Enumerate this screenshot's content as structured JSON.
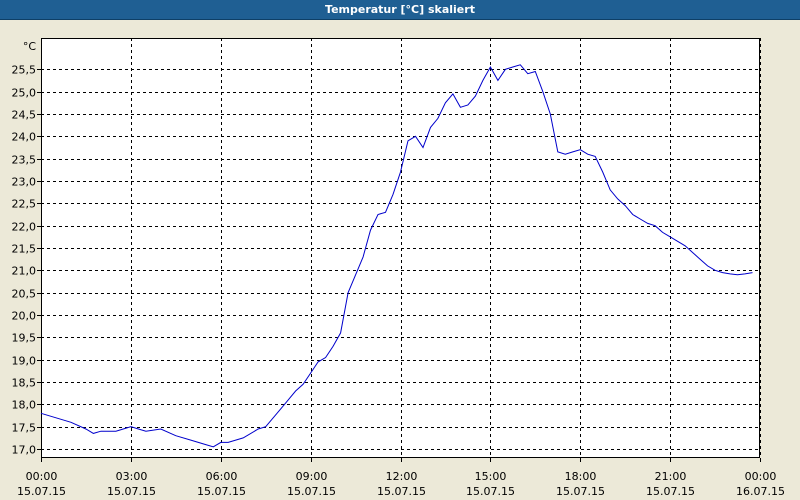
{
  "window": {
    "title": "Temperatur [°C] skaliert"
  },
  "colors": {
    "titlebar": "#1f5f93",
    "panel": "#ece9d8",
    "plot_bg": "#ffffff",
    "grid": "#000000",
    "line": "#0000cc"
  },
  "chart_data": {
    "type": "line",
    "title": "Temperatur [°C] skaliert",
    "ylabel": "°C",
    "xlabel": "",
    "ylim": [
      16.8,
      26.2
    ],
    "xlim": [
      0,
      24
    ],
    "grid": true,
    "y_ticks": [
      "17,0",
      "17,5",
      "18,0",
      "18,5",
      "19,0",
      "19,5",
      "20,0",
      "20,5",
      "21,0",
      "21,5",
      "22,0",
      "22,5",
      "23,0",
      "23,5",
      "24,0",
      "24,5",
      "25,0",
      "25,5"
    ],
    "y_tick_values": [
      17.0,
      17.5,
      18.0,
      18.5,
      19.0,
      19.5,
      20.0,
      20.5,
      21.0,
      21.5,
      22.0,
      22.5,
      23.0,
      23.5,
      24.0,
      24.5,
      25.0,
      25.5
    ],
    "x_ticks": [
      {
        "time": "00:00",
        "date": "15.07.15"
      },
      {
        "time": "03:00",
        "date": "15.07.15"
      },
      {
        "time": "06:00",
        "date": "15.07.15"
      },
      {
        "time": "09:00",
        "date": "15.07.15"
      },
      {
        "time": "12:00",
        "date": "15.07.15"
      },
      {
        "time": "15:00",
        "date": "15.07.15"
      },
      {
        "time": "18:00",
        "date": "15.07.15"
      },
      {
        "time": "21:00",
        "date": "15.07.15"
      },
      {
        "time": "00:00",
        "date": "16.07.15"
      }
    ],
    "x_tick_hours": [
      0,
      3,
      6,
      9,
      12,
      15,
      18,
      21,
      24
    ],
    "series": [
      {
        "x": [
          0.0,
          0.5,
          1.0,
          1.5,
          1.75,
          2.0,
          2.5,
          3.0,
          3.25,
          3.5,
          4.0,
          4.5,
          5.0,
          5.5,
          5.75,
          6.0,
          6.25,
          6.75,
          7.25,
          7.5,
          7.75,
          8.0,
          8.25,
          8.5,
          8.75,
          9.0,
          9.25,
          9.5,
          9.75,
          10.0,
          10.25,
          10.5,
          10.75,
          11.0,
          11.25,
          11.5,
          11.75,
          12.0,
          12.25,
          12.5,
          12.75,
          13.0,
          13.25,
          13.5,
          13.75,
          14.0,
          14.25,
          14.5,
          14.75,
          15.0,
          15.25,
          15.5,
          15.75,
          16.0,
          16.25,
          16.5,
          16.75,
          17.0,
          17.25,
          17.5,
          17.75,
          18.0,
          18.25,
          18.5,
          18.75,
          19.0,
          19.25,
          19.5,
          19.75,
          20.0,
          20.25,
          20.5,
          20.75,
          21.0,
          21.25,
          21.5,
          21.75,
          22.0,
          22.25,
          22.5,
          22.75,
          23.0,
          23.25,
          23.5,
          23.75
        ],
        "y": [
          17.8,
          17.7,
          17.6,
          17.45,
          17.35,
          17.4,
          17.4,
          17.5,
          17.45,
          17.4,
          17.45,
          17.3,
          17.2,
          17.1,
          17.05,
          17.15,
          17.15,
          17.25,
          17.45,
          17.5,
          17.7,
          17.9,
          18.1,
          18.3,
          18.45,
          18.7,
          18.95,
          19.05,
          19.3,
          19.6,
          20.5,
          20.9,
          21.3,
          21.9,
          22.25,
          22.3,
          22.7,
          23.2,
          23.9,
          24.0,
          23.75,
          24.2,
          24.4,
          24.75,
          24.95,
          24.65,
          24.7,
          24.9,
          25.25,
          25.55,
          25.25,
          25.5,
          25.55,
          25.6,
          25.4,
          25.45,
          25.0,
          24.5,
          23.65,
          23.6,
          23.65,
          23.7,
          23.6,
          23.55,
          23.2,
          22.8,
          22.6,
          22.45,
          22.25,
          22.15,
          22.05,
          22.0,
          21.85,
          21.75,
          21.65,
          21.55,
          21.4,
          21.25,
          21.1,
          21.0,
          20.95,
          20.92,
          20.9,
          20.92,
          20.95
        ]
      }
    ]
  }
}
